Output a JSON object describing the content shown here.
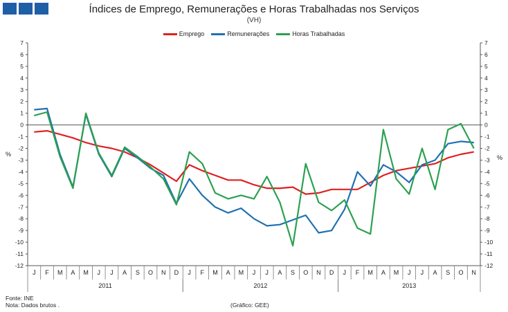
{
  "chart_data": {
    "type": "line",
    "title": "Índices de Emprego, Remunerações e Horas Trabalhadas  nos Serviços",
    "subtitle": "(VH)",
    "ylabel_left": "%",
    "ylabel_right": "%",
    "ylim": [
      -12,
      7
    ],
    "yticks": [
      7,
      6,
      5,
      4,
      3,
      2,
      1,
      0,
      -1,
      -2,
      -3,
      -4,
      -5,
      -6,
      -7,
      -8,
      -9,
      -10,
      -11,
      -12
    ],
    "categories": [
      "J",
      "F",
      "M",
      "A",
      "M",
      "J",
      "J",
      "A",
      "S",
      "O",
      "N",
      "D",
      "J",
      "F",
      "M",
      "A",
      "M",
      "J",
      "J",
      "A",
      "S",
      "O",
      "N",
      "D",
      "J",
      "F",
      "M",
      "A",
      "M",
      "J",
      "J",
      "A",
      "S",
      "O",
      "N"
    ],
    "years": [
      {
        "label": "2011",
        "start": 0,
        "end": 11
      },
      {
        "label": "2012",
        "start": 12,
        "end": 23
      },
      {
        "label": "2013",
        "start": 24,
        "end": 34
      }
    ],
    "series": [
      {
        "name": "Emprego",
        "color": "#e02020",
        "values": [
          -0.6,
          -0.5,
          -0.8,
          -1.1,
          -1.5,
          -1.8,
          -2.0,
          -2.3,
          -2.8,
          -3.4,
          -4.1,
          -4.8,
          -3.4,
          -3.9,
          -4.3,
          -4.7,
          -4.7,
          -5.1,
          -5.4,
          -5.4,
          -5.3,
          -5.9,
          -5.8,
          -5.5,
          -5.5,
          -5.5,
          -4.9,
          -4.3,
          -3.9,
          -3.7,
          -3.5,
          -3.3,
          -2.8,
          -2.5,
          -2.3
        ]
      },
      {
        "name": "Remunerações",
        "color": "#2070b0",
        "values": [
          1.3,
          1.4,
          -2.5,
          -5.3,
          0.9,
          -2.5,
          -4.4,
          -2.0,
          -2.8,
          -3.7,
          -4.3,
          -6.7,
          -4.6,
          -6.0,
          -7.0,
          -7.5,
          -7.1,
          -8.0,
          -8.6,
          -8.5,
          -8.1,
          -7.7,
          -9.2,
          -9.0,
          -7.2,
          -4.0,
          -5.2,
          -3.4,
          -4.0,
          -4.9,
          -3.4,
          -3.0,
          -1.6,
          -1.4,
          -1.5
        ]
      },
      {
        "name": "Horas Trabalhadas",
        "color": "#2ca050",
        "values": [
          0.8,
          1.1,
          -2.7,
          -5.4,
          1.0,
          -2.4,
          -4.3,
          -1.9,
          -2.7,
          -3.6,
          -4.6,
          -6.8,
          -2.3,
          -3.3,
          -5.8,
          -6.3,
          -6.0,
          -6.3,
          -4.4,
          -6.6,
          -10.3,
          -3.3,
          -6.6,
          -7.3,
          -6.4,
          -8.8,
          -9.3,
          -0.4,
          -4.6,
          -5.9,
          -2.0,
          -5.5,
          -0.4,
          0.1,
          -2.0
        ]
      }
    ]
  },
  "source": "Fonte: INE",
  "note": "Nota: Dados  brutos .",
  "credit": "(Gráfico:  GEE)"
}
